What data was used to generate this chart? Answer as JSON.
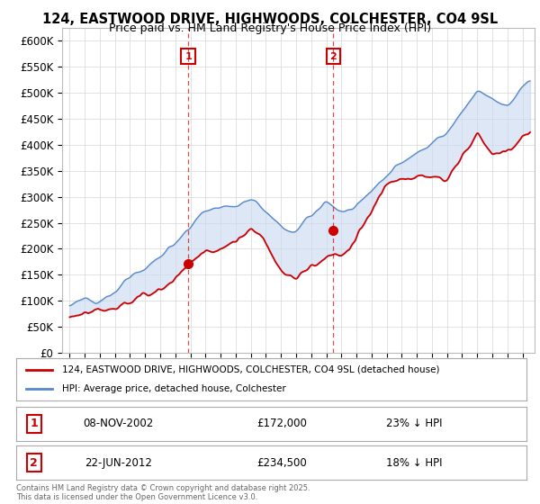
{
  "title": "124, EASTWOOD DRIVE, HIGHWOODS, COLCHESTER, CO4 9SL",
  "subtitle": "Price paid vs. HM Land Registry's House Price Index (HPI)",
  "ytick_labels": [
    "£0",
    "£50K",
    "£100K",
    "£150K",
    "£200K",
    "£250K",
    "£300K",
    "£350K",
    "£400K",
    "£450K",
    "£500K",
    "£550K",
    "£600K"
  ],
  "yticks": [
    0,
    50000,
    100000,
    150000,
    200000,
    250000,
    300000,
    350000,
    400000,
    450000,
    500000,
    550000,
    600000
  ],
  "xticks": [
    1995,
    1996,
    1997,
    1998,
    1999,
    2000,
    2001,
    2002,
    2003,
    2004,
    2005,
    2006,
    2007,
    2008,
    2009,
    2010,
    2011,
    2012,
    2013,
    2014,
    2015,
    2016,
    2017,
    2018,
    2019,
    2020,
    2021,
    2022,
    2023,
    2024,
    2025
  ],
  "line1_color": "#cc0000",
  "line2_color": "#5588cc",
  "fill_color": "#c8d8f0",
  "sale1_x": 2002.86,
  "sale1_y": 172000,
  "sale2_x": 2012.47,
  "sale2_y": 234500,
  "vline_color": "#cc0000",
  "marker_box_color": "#cc0000",
  "legend_line1": "124, EASTWOOD DRIVE, HIGHWOODS, COLCHESTER, CO4 9SL (detached house)",
  "legend_line2": "HPI: Average price, detached house, Colchester",
  "footer": "Contains HM Land Registry data © Crown copyright and database right 2025.\nThis data is licensed under the Open Government Licence v3.0.",
  "bg_color": "#ffffff",
  "plot_bg_color": "#ffffff",
  "grid_color": "#dddddd"
}
